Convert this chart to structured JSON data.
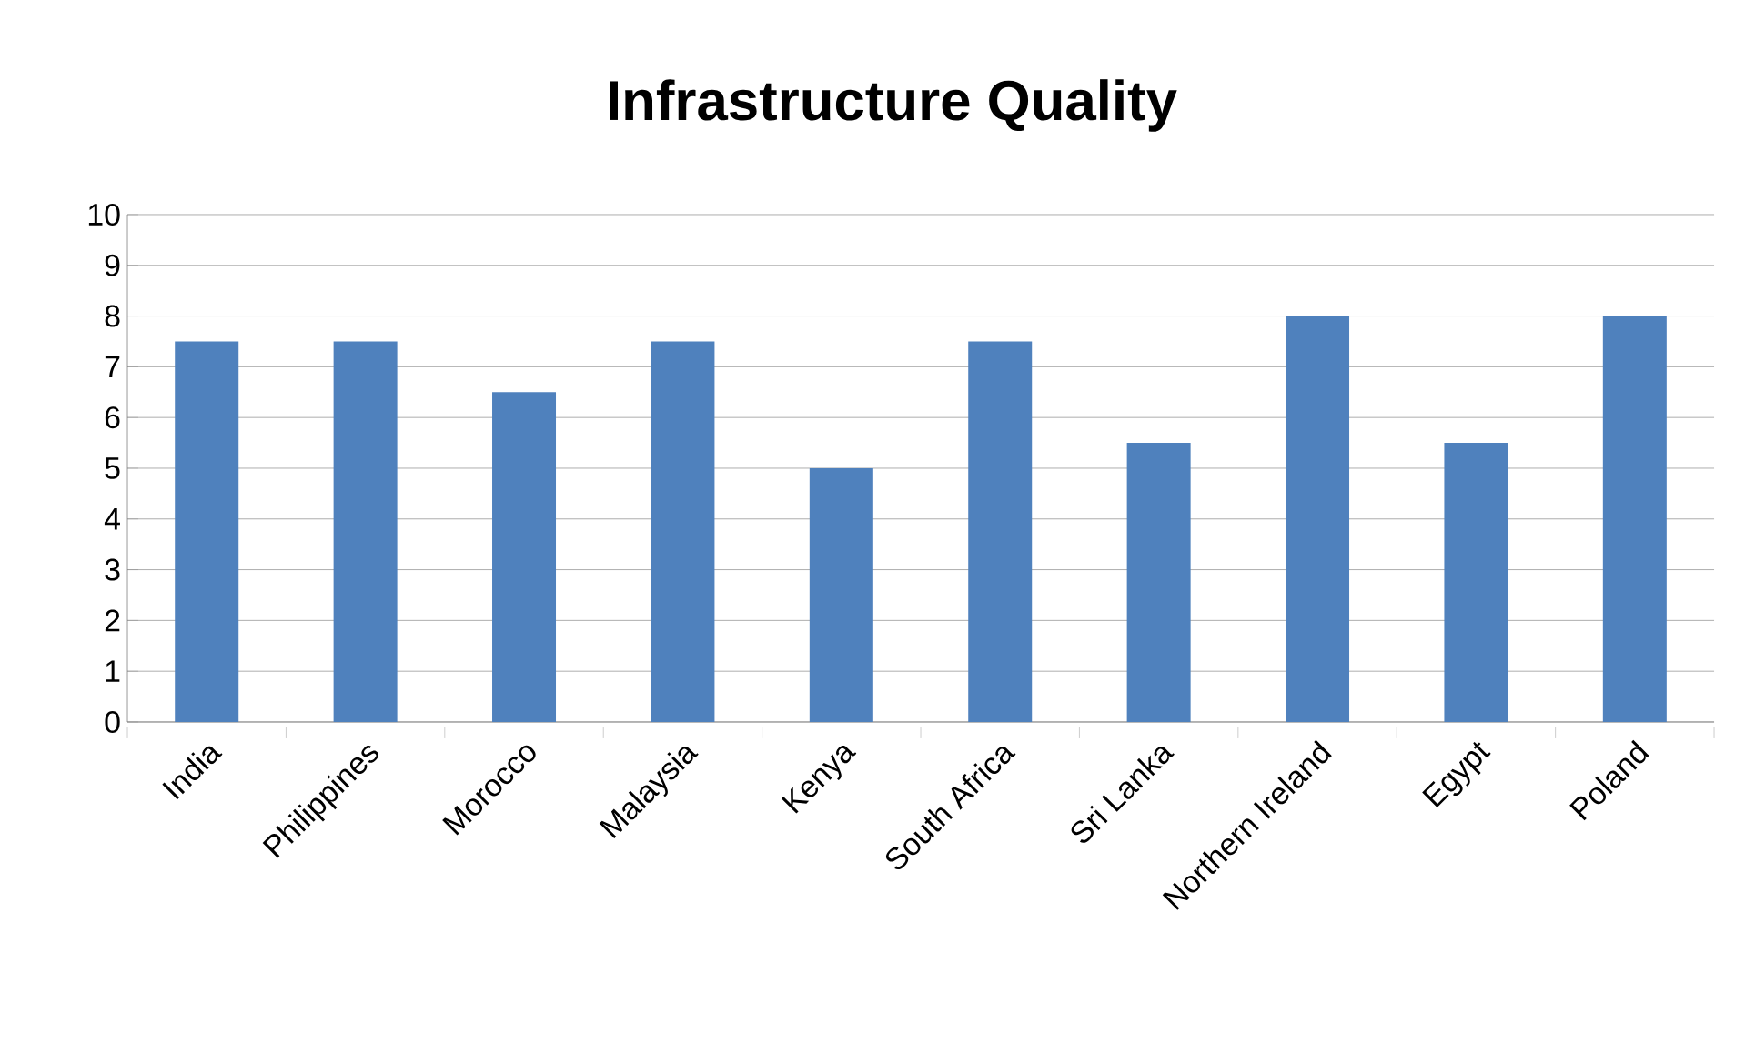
{
  "chart_data": {
    "type": "bar",
    "title": "Infrastructure Quality",
    "categories": [
      "India",
      "Philippines",
      "Morocco",
      "Malaysia",
      "Kenya",
      "South Africa",
      "Sri Lanka",
      "Northern Ireland",
      "Egypt",
      "Poland"
    ],
    "values": [
      7.5,
      7.5,
      6.5,
      7.5,
      5,
      7.5,
      5.5,
      8,
      5.5,
      8
    ],
    "color": "#4f81bd",
    "ylim": [
      0,
      10
    ],
    "yticks": [
      0,
      1,
      2,
      3,
      4,
      5,
      6,
      7,
      8,
      9,
      10
    ],
    "grid": "y"
  }
}
